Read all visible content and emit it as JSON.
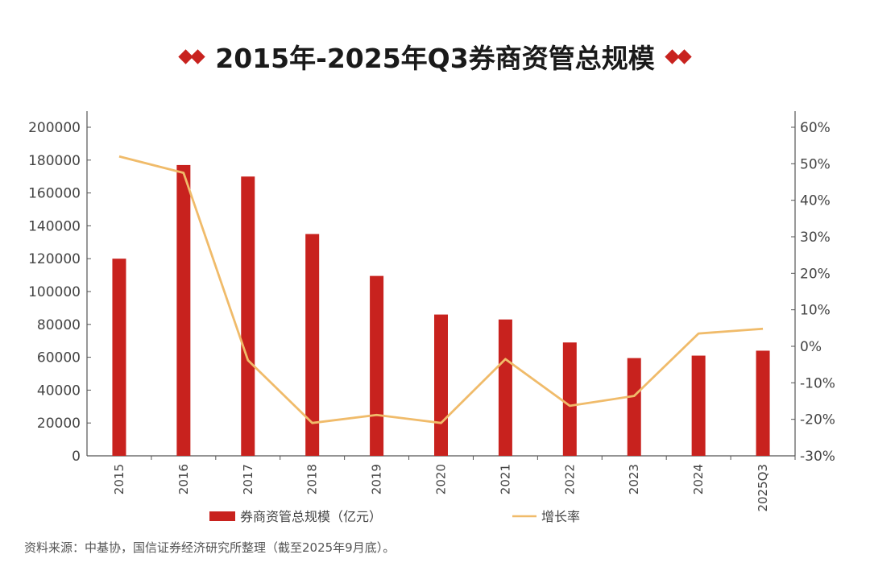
{
  "title": "2015年-2025年Q3券商资管总规模",
  "source": "资料来源：中基协，国信证券经济研究所整理（截至2025年9月底）。",
  "colors": {
    "bar": "#c8221e",
    "line": "#f0bb6a",
    "axis": "#555555",
    "text": "#444444"
  },
  "chart_data": {
    "type": "bar",
    "categories": [
      "2015",
      "2016",
      "2017",
      "2018",
      "2019",
      "2020",
      "2021",
      "2022",
      "2023",
      "2024",
      "2025Q3"
    ],
    "series": [
      {
        "name": "券商资管总规模（亿元）",
        "type": "bar",
        "axis": "left",
        "values": [
          120000,
          177000,
          170000,
          135000,
          109500,
          86000,
          83000,
          69000,
          59500,
          61000,
          64000
        ]
      },
      {
        "name": "增长率",
        "type": "line",
        "axis": "right",
        "values": [
          52,
          47.5,
          -3.8,
          -21,
          -18.8,
          -21,
          -3.5,
          -16.3,
          -13.6,
          3.5,
          4.8
        ]
      }
    ],
    "left_axis": {
      "min": 0,
      "max": 200000,
      "ticks": [
        0,
        20000,
        40000,
        60000,
        80000,
        100000,
        120000,
        140000,
        160000,
        180000,
        200000
      ]
    },
    "right_axis": {
      "min": -30,
      "max": 60,
      "ticks": [
        "-30%",
        "-20%",
        "-10%",
        "0%",
        "10%",
        "20%",
        "30%",
        "40%",
        "50%",
        "60%"
      ]
    },
    "grid": false,
    "legend_position": "bottom"
  }
}
